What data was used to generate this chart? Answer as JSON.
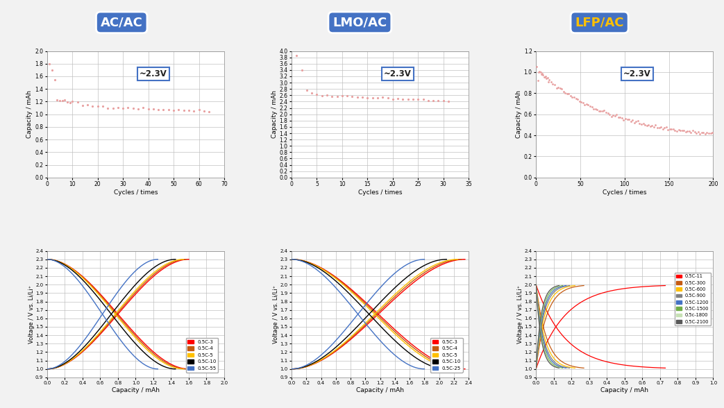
{
  "titles": [
    "AC/AC",
    "LMO/AC",
    "LFP/AC"
  ],
  "title_colors": [
    "#ffffff",
    "#ffffff",
    "#ffc000"
  ],
  "title_bg_color": "#4472c4",
  "voltage_label": "~2.3V",
  "top_ylabel": "Capacity / mAh",
  "top_xlabel": "Cycles / times",
  "bot_ylabel": "Voltage / V vs. Li/Li⁺",
  "bot_xlabel": "Capacity / mAh",
  "ac_top": {
    "xlim": [
      0,
      70
    ],
    "ylim": [
      0.0,
      2.0
    ],
    "yticks": [
      0.0,
      0.2,
      0.4,
      0.6,
      0.8,
      1.0,
      1.2,
      1.4,
      1.6,
      1.8,
      2.0
    ],
    "xticks": [
      0,
      10,
      20,
      30,
      40,
      50,
      60,
      70
    ]
  },
  "lmo_top": {
    "xlim": [
      0,
      35
    ],
    "ylim": [
      0.0,
      4.0
    ],
    "yticks": [
      0.0,
      0.2,
      0.4,
      0.6,
      0.8,
      1.0,
      1.2,
      1.4,
      1.6,
      1.8,
      2.0,
      2.2,
      2.4,
      2.6,
      2.8,
      3.0,
      3.2,
      3.4,
      3.6,
      3.8,
      4.0
    ],
    "xticks": [
      0,
      5,
      10,
      15,
      20,
      25,
      30,
      35
    ]
  },
  "lfp_top": {
    "xlim": [
      0,
      200
    ],
    "ylim": [
      0.0,
      1.2
    ],
    "yticks": [
      0.0,
      0.2,
      0.4,
      0.6,
      0.8,
      1.0,
      1.2
    ],
    "xticks": [
      0,
      50,
      100,
      150,
      200
    ]
  },
  "ac_bot": {
    "xlim": [
      0.0,
      2.0
    ],
    "ylim": [
      0.9,
      2.4
    ],
    "xticks": [
      0.0,
      0.2,
      0.4,
      0.6,
      0.8,
      1.0,
      1.2,
      1.4,
      1.6,
      1.8,
      2.0
    ],
    "yticks": [
      0.9,
      1.0,
      1.1,
      1.2,
      1.3,
      1.4,
      1.5,
      1.6,
      1.7,
      1.8,
      1.9,
      2.0,
      2.1,
      2.2,
      2.3,
      2.4
    ],
    "legend": [
      "0.5C-3",
      "0.5C-4",
      "0.5C-5",
      "0.5C-10",
      "0.5C-55"
    ],
    "legend_colors": [
      "#ff0000",
      "#c55a11",
      "#ffc000",
      "#000000",
      "#4472c4"
    ],
    "caps": [
      1.6,
      1.57,
      1.54,
      1.45,
      1.25
    ]
  },
  "lmo_bot": {
    "xlim": [
      0.0,
      2.4
    ],
    "ylim": [
      0.9,
      2.4
    ],
    "xticks": [
      0.0,
      0.2,
      0.4,
      0.6,
      0.8,
      1.0,
      1.2,
      1.4,
      1.6,
      1.8,
      2.0,
      2.2,
      2.4
    ],
    "yticks": [
      0.9,
      1.0,
      1.1,
      1.2,
      1.3,
      1.4,
      1.5,
      1.6,
      1.7,
      1.8,
      1.9,
      2.0,
      2.1,
      2.2,
      2.3,
      2.4
    ],
    "legend": [
      "0.5C-3",
      "0.5C-4",
      "0.5C-5",
      "0.5C-10",
      "0.5C-25"
    ],
    "legend_colors": [
      "#ff0000",
      "#c55a11",
      "#ffc000",
      "#000000",
      "#4472c4"
    ],
    "caps": [
      2.35,
      2.3,
      2.25,
      2.1,
      1.8
    ]
  },
  "lfp_bot": {
    "xlim": [
      0.0,
      1.0
    ],
    "ylim": [
      0.9,
      2.4
    ],
    "xticks": [
      0.0,
      0.1,
      0.2,
      0.3,
      0.4,
      0.5,
      0.6,
      0.7,
      0.8,
      0.9,
      1.0
    ],
    "yticks": [
      0.9,
      1.0,
      1.1,
      1.2,
      1.3,
      1.4,
      1.5,
      1.6,
      1.7,
      1.8,
      1.9,
      2.0,
      2.1,
      2.2,
      2.3,
      2.4
    ],
    "legend": [
      "0.5C-11",
      "0.5C-300",
      "0.5C-600",
      "0.5C-900",
      "0.5C-1200",
      "0.5C-1500",
      "0.5c-1800",
      "0.5C-2100"
    ],
    "legend_colors": [
      "#ff0000",
      "#c55a11",
      "#ffc000",
      "#808080",
      "#4472c4",
      "#70ad47",
      "#c6e0b4",
      "#595959"
    ],
    "caps": [
      0.73,
      0.27,
      0.22,
      0.19,
      0.17,
      0.15,
      0.14,
      0.13
    ]
  },
  "dot_color": "#e8a0a0",
  "grid_color": "#c0c0c0",
  "bg_color": "#f2f2f2"
}
